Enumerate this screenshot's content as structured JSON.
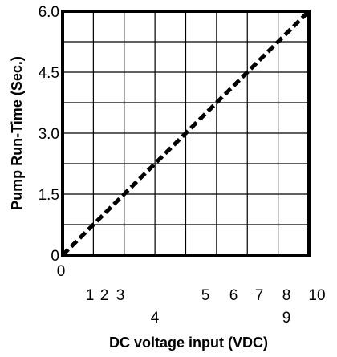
{
  "chart_data": {
    "type": "line",
    "title": "",
    "xlabel": "DC voltage input (VDC)",
    "ylabel": "Pump Run-Time (Sec.)",
    "xlim": [
      0,
      10
    ],
    "ylim": [
      0,
      6.0
    ],
    "grid": true,
    "x_tick_labels": [
      {
        "value": 0,
        "label": "0"
      },
      {
        "value": 1,
        "label": "1"
      },
      {
        "value": 2,
        "label": "2"
      },
      {
        "value": 3,
        "label": "3"
      },
      {
        "value": 4,
        "label": "4"
      },
      {
        "value": 5,
        "label": "5"
      },
      {
        "value": 6,
        "label": "6"
      },
      {
        "value": 7,
        "label": "7"
      },
      {
        "value": 8,
        "label": "8"
      },
      {
        "value": 9,
        "label": "9"
      },
      {
        "value": 10,
        "label": "10"
      }
    ],
    "y_tick_labels": [
      {
        "value": 0,
        "label": "0"
      },
      {
        "value": 1.5,
        "label": "1.5"
      },
      {
        "value": 3.0,
        "label": "3.0"
      },
      {
        "value": 4.5,
        "label": "4.5"
      },
      {
        "value": 6.0,
        "label": "6.0"
      }
    ],
    "series": [
      {
        "style": "dashed",
        "color": "#000000",
        "x": [
          0,
          10
        ],
        "y": [
          0,
          6.0
        ]
      }
    ]
  }
}
